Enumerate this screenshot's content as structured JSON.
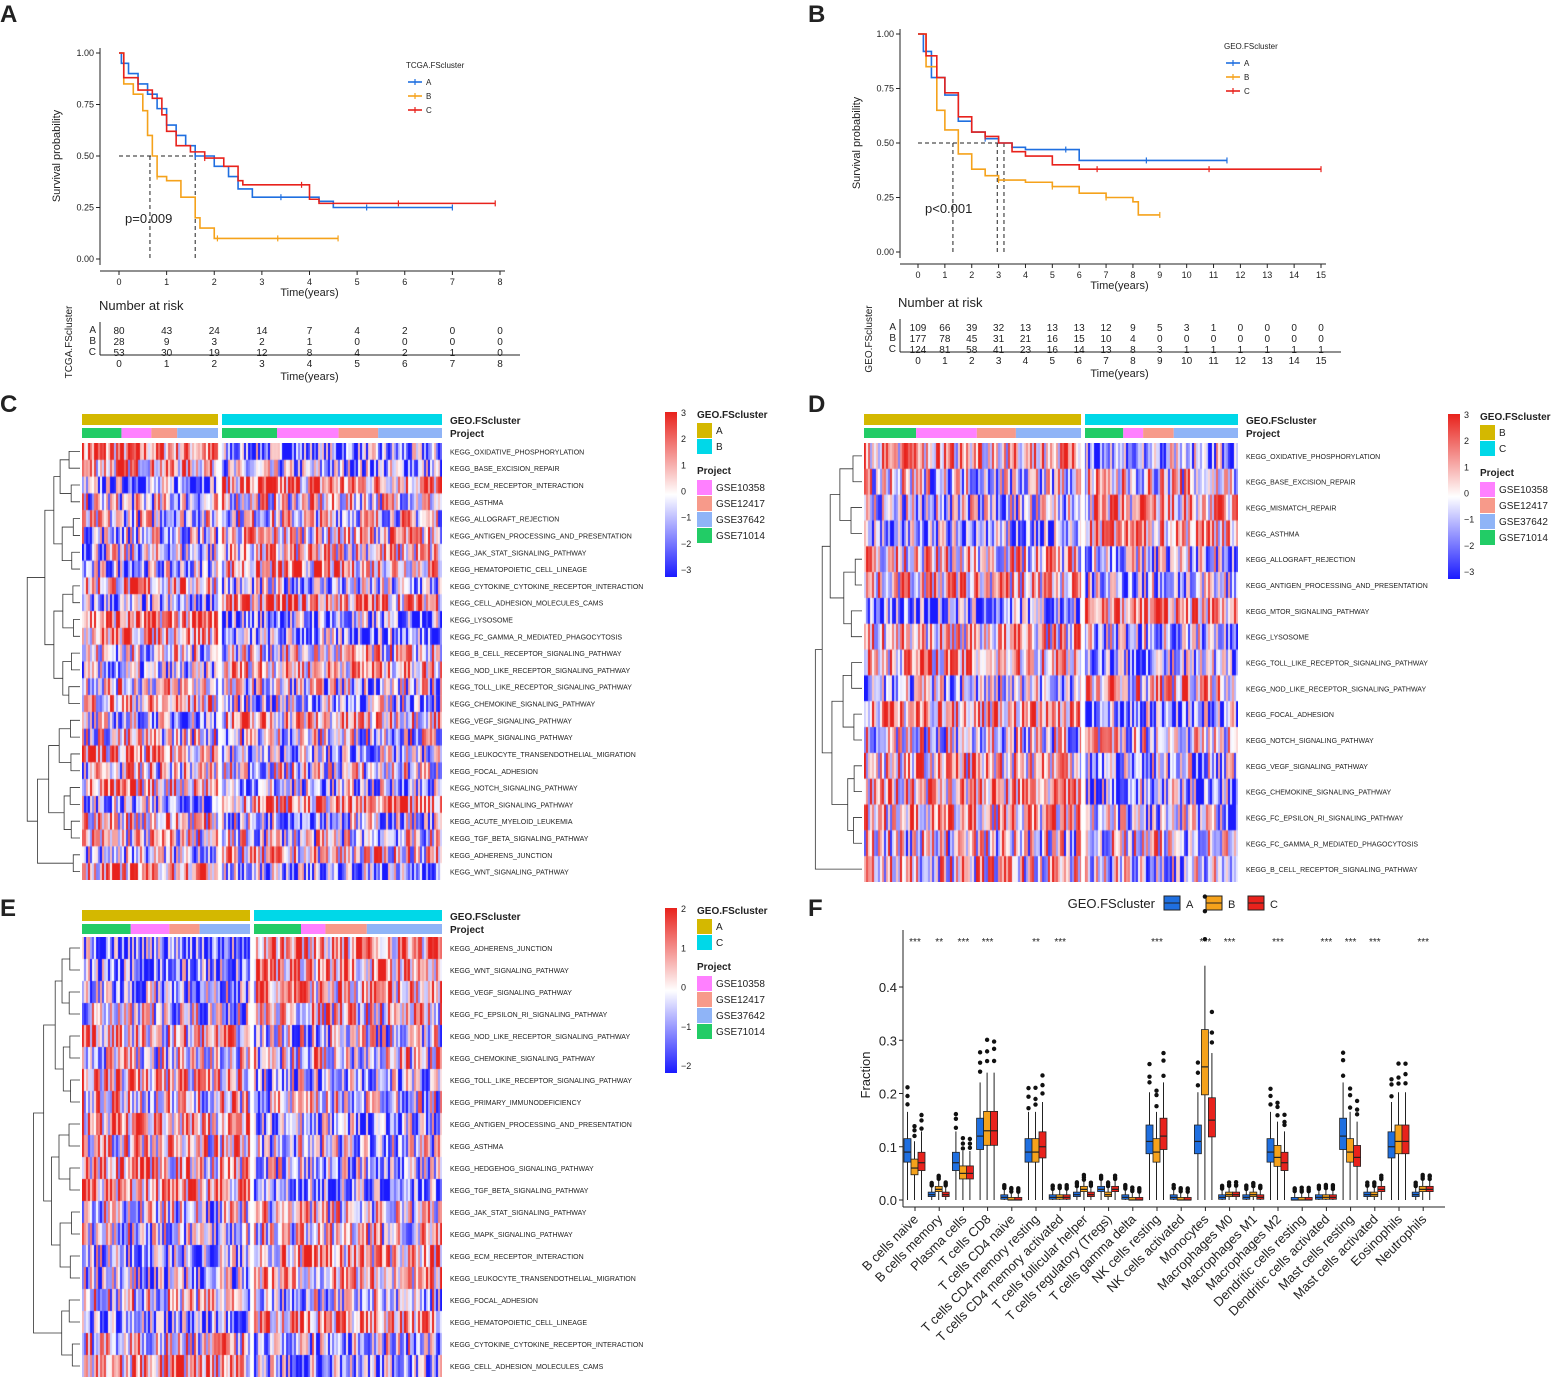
{
  "panels": {
    "a": "A",
    "b": "B",
    "c": "C",
    "d": "D",
    "e": "E",
    "f": "F"
  },
  "colors": {
    "A": "#1f6fe0",
    "B": "#f5a21b",
    "C": "#e8221c",
    "gold": "#d4b800",
    "cyan": "#00d8e8",
    "GSE10358": "#ff80ff",
    "GSE12417": "#f79a8a",
    "GSE37642": "#8fb4f7",
    "GSE71014": "#22cc66",
    "heat_high": "#e8221c",
    "heat_low": "#1a1aff"
  },
  "chart_data": [
    {
      "id": "A",
      "type": "line",
      "subtype": "kaplan-meier",
      "xlabel": "Time(years)",
      "ylabel": "Survival probability",
      "xlim": [
        0,
        8
      ],
      "ylim": [
        0,
        1
      ],
      "xticks": [
        "0",
        "1",
        "2",
        "3",
        "4",
        "5",
        "6",
        "7",
        "8"
      ],
      "yticks": [
        "0.00",
        "0.25",
        "0.50",
        "0.75",
        "1.00"
      ],
      "legend_title": "TCGA.FScluster",
      "legend_position": "top-right",
      "pvalue": "p=0.009",
      "medians": [
        0.65,
        1.6
      ],
      "series": [
        {
          "name": "A",
          "points": [
            [
              0,
              1
            ],
            [
              0.05,
              0.95
            ],
            [
              0.2,
              0.9
            ],
            [
              0.4,
              0.85
            ],
            [
              0.6,
              0.8
            ],
            [
              0.8,
              0.73
            ],
            [
              1,
              0.65
            ],
            [
              1.2,
              0.6
            ],
            [
              1.4,
              0.55
            ],
            [
              1.6,
              0.5
            ],
            [
              2,
              0.45
            ],
            [
              2.3,
              0.4
            ],
            [
              2.5,
              0.34
            ],
            [
              2.8,
              0.3
            ],
            [
              3.5,
              0.3
            ],
            [
              4.2,
              0.28
            ],
            [
              4.5,
              0.25
            ],
            [
              7,
              0.25
            ]
          ]
        },
        {
          "name": "B",
          "points": [
            [
              0,
              1
            ],
            [
              0.1,
              0.85
            ],
            [
              0.3,
              0.8
            ],
            [
              0.5,
              0.72
            ],
            [
              0.6,
              0.6
            ],
            [
              0.7,
              0.5
            ],
            [
              0.8,
              0.4
            ],
            [
              1,
              0.38
            ],
            [
              1.3,
              0.3
            ],
            [
              1.6,
              0.2
            ],
            [
              1.7,
              0.15
            ],
            [
              2,
              0.1
            ],
            [
              4.6,
              0.1
            ]
          ]
        },
        {
          "name": "C",
          "points": [
            [
              0,
              1
            ],
            [
              0.1,
              0.88
            ],
            [
              0.4,
              0.82
            ],
            [
              0.7,
              0.78
            ],
            [
              0.9,
              0.7
            ],
            [
              1,
              0.62
            ],
            [
              1.2,
              0.55
            ],
            [
              1.5,
              0.52
            ],
            [
              1.8,
              0.49
            ],
            [
              2.2,
              0.45
            ],
            [
              2.5,
              0.38
            ],
            [
              2.6,
              0.36
            ],
            [
              4,
              0.36
            ],
            [
              4,
              0.29
            ],
            [
              4.2,
              0.27
            ],
            [
              7.9,
              0.27
            ]
          ]
        }
      ],
      "risk_table": {
        "title": "Number at risk",
        "ylabel": "TCGA.FScluster",
        "xlabel": "Time(years)",
        "times": [
          "0",
          "1",
          "2",
          "3",
          "4",
          "5",
          "6",
          "7",
          "8"
        ],
        "rows": [
          {
            "name": "A",
            "values": [
              "80",
              "43",
              "24",
              "14",
              "7",
              "4",
              "2",
              "0",
              "0"
            ]
          },
          {
            "name": "B",
            "values": [
              "28",
              "9",
              "3",
              "2",
              "1",
              "0",
              "0",
              "0",
              "0"
            ]
          },
          {
            "name": "C",
            "values": [
              "53",
              "30",
              "19",
              "12",
              "8",
              "4",
              "2",
              "1",
              "0"
            ]
          }
        ]
      }
    },
    {
      "id": "B",
      "type": "line",
      "subtype": "kaplan-meier",
      "xlabel": "Time(years)",
      "ylabel": "Survival probability",
      "xlim": [
        0,
        15
      ],
      "ylim": [
        0,
        1
      ],
      "xticks": [
        "0",
        "1",
        "2",
        "3",
        "4",
        "5",
        "6",
        "7",
        "8",
        "9",
        "10",
        "11",
        "12",
        "13",
        "14",
        "15"
      ],
      "yticks": [
        "0.00",
        "0.25",
        "0.50",
        "0.75",
        "1.00"
      ],
      "legend_title": "GEO.FScluster",
      "legend_position": "top-right",
      "pvalue": "p<0.001",
      "medians": [
        1.3,
        2.95,
        3.2
      ],
      "series": [
        {
          "name": "A",
          "points": [
            [
              0,
              1
            ],
            [
              0.2,
              0.92
            ],
            [
              0.5,
              0.8
            ],
            [
              1,
              0.72
            ],
            [
              1.5,
              0.6
            ],
            [
              2,
              0.55
            ],
            [
              2.5,
              0.52
            ],
            [
              3,
              0.5
            ],
            [
              3.5,
              0.48
            ],
            [
              4,
              0.47
            ],
            [
              6,
              0.47
            ],
            [
              6,
              0.42
            ],
            [
              11.5,
              0.42
            ]
          ]
        },
        {
          "name": "B",
          "points": [
            [
              0,
              1
            ],
            [
              0.3,
              0.85
            ],
            [
              0.7,
              0.65
            ],
            [
              1,
              0.56
            ],
            [
              1.5,
              0.45
            ],
            [
              2,
              0.38
            ],
            [
              2.5,
              0.35
            ],
            [
              3,
              0.33
            ],
            [
              4,
              0.32
            ],
            [
              5,
              0.3
            ],
            [
              6,
              0.27
            ],
            [
              7,
              0.25
            ],
            [
              8,
              0.23
            ],
            [
              8.2,
              0.17
            ],
            [
              9,
              0.17
            ]
          ]
        },
        {
          "name": "C",
          "points": [
            [
              0,
              1
            ],
            [
              0.3,
              0.9
            ],
            [
              0.7,
              0.8
            ],
            [
              1,
              0.73
            ],
            [
              1.5,
              0.62
            ],
            [
              2,
              0.55
            ],
            [
              2.5,
              0.53
            ],
            [
              3,
              0.5
            ],
            [
              3.5,
              0.46
            ],
            [
              4,
              0.44
            ],
            [
              5,
              0.4
            ],
            [
              6,
              0.38
            ],
            [
              15,
              0.38
            ]
          ]
        }
      ],
      "risk_table": {
        "title": "Number at risk",
        "ylabel": "GEO.FScluster",
        "xlabel": "Time(years)",
        "times": [
          "0",
          "1",
          "2",
          "3",
          "4",
          "5",
          "6",
          "7",
          "8",
          "9",
          "10",
          "11",
          "12",
          "13",
          "14",
          "15"
        ],
        "rows": [
          {
            "name": "A",
            "values": [
              "109",
              "66",
              "39",
              "32",
              "13",
              "13",
              "13",
              "12",
              "9",
              "5",
              "3",
              "1",
              "0",
              "0",
              "0",
              "0"
            ]
          },
          {
            "name": "B",
            "values": [
              "177",
              "78",
              "45",
              "31",
              "21",
              "16",
              "15",
              "10",
              "4",
              "0",
              "0",
              "0",
              "0",
              "0",
              "0",
              "0"
            ]
          },
          {
            "name": "C",
            "values": [
              "124",
              "81",
              "58",
              "41",
              "23",
              "16",
              "14",
              "13",
              "8",
              "3",
              "1",
              "1",
              "1",
              "1",
              "1",
              "1"
            ]
          }
        ]
      }
    },
    {
      "id": "C",
      "type": "heatmap",
      "annotation_labels": [
        "GEO.FScluster",
        "Project"
      ],
      "legend_cluster_title": "GEO.FScluster",
      "clusters": [
        "A",
        "B"
      ],
      "legend_project_title": "Project",
      "projects": [
        "GSE10358",
        "GSE12417",
        "GSE37642",
        "GSE71014"
      ],
      "scale": [
        "3",
        "2",
        "1",
        "0",
        "−1",
        "−2",
        "−3"
      ],
      "rows": [
        "KEGG_OXIDATIVE_PHOSPHORYLATION",
        "KEGG_BASE_EXCISION_REPAIR",
        "KEGG_ECM_RECEPTOR_INTERACTION",
        "KEGG_ASTHMA",
        "KEGG_ALLOGRAFT_REJECTION",
        "KEGG_ANTIGEN_PROCESSING_AND_PRESENTATION",
        "KEGG_JAK_STAT_SIGNALING_PATHWAY",
        "KEGG_HEMATOPOIETIC_CELL_LINEAGE",
        "KEGG_CYTOKINE_CYTOKINE_RECEPTOR_INTERACTION",
        "KEGG_CELL_ADHESION_MOLECULES_CAMS",
        "KEGG_LYSOSOME",
        "KEGG_FC_GAMMA_R_MEDIATED_PHAGOCYTOSIS",
        "KEGG_B_CELL_RECEPTOR_SIGNALING_PATHWAY",
        "KEGG_NOD_LIKE_RECEPTOR_SIGNALING_PATHWAY",
        "KEGG_TOLL_LIKE_RECEPTOR_SIGNALING_PATHWAY",
        "KEGG_CHEMOKINE_SIGNALING_PATHWAY",
        "KEGG_VEGF_SIGNALING_PATHWAY",
        "KEGG_MAPK_SIGNALING_PATHWAY",
        "KEGG_LEUKOCYTE_TRANSENDOTHELIAL_MIGRATION",
        "KEGG_FOCAL_ADHESION",
        "KEGG_NOTCH_SIGNALING_PATHWAY",
        "KEGG_MTOR_SIGNALING_PATHWAY",
        "KEGG_ACUTE_MYELOID_LEUKEMIA",
        "KEGG_TGF_BETA_SIGNALING_PATHWAY",
        "KEGG_ADHERENS_JUNCTION",
        "KEGG_WNT_SIGNALING_PATHWAY"
      ]
    },
    {
      "id": "D",
      "type": "heatmap",
      "annotation_labels": [
        "GEO.FScluster",
        "Project"
      ],
      "legend_cluster_title": "GEO.FScluster",
      "clusters": [
        "B",
        "C"
      ],
      "legend_project_title": "Project",
      "projects": [
        "GSE10358",
        "GSE12417",
        "GSE37642",
        "GSE71014"
      ],
      "scale": [
        "3",
        "2",
        "1",
        "0",
        "−1",
        "−2",
        "−3"
      ],
      "rows": [
        "KEGG_OXIDATIVE_PHOSPHORYLATION",
        "KEGG_BASE_EXCISION_REPAIR",
        "KEGG_MISMATCH_REPAIR",
        "KEGG_ASTHMA",
        "KEGG_ALLOGRAFT_REJECTION",
        "KEGG_ANTIGEN_PROCESSING_AND_PRESENTATION",
        "KEGG_MTOR_SIGNALING_PATHWAY",
        "KEGG_LYSOSOME",
        "KEGG_TOLL_LIKE_RECEPTOR_SIGNALING_PATHWAY",
        "KEGG_NOD_LIKE_RECEPTOR_SIGNALING_PATHWAY",
        "KEGG_FOCAL_ADHESION",
        "KEGG_NOTCH_SIGNALING_PATHWAY",
        "KEGG_VEGF_SIGNALING_PATHWAY",
        "KEGG_CHEMOKINE_SIGNALING_PATHWAY",
        "KEGG_FC_EPSILON_RI_SIGNALING_PATHWAY",
        "KEGG_FC_GAMMA_R_MEDIATED_PHAGOCYTOSIS",
        "KEGG_B_CELL_RECEPTOR_SIGNALING_PATHWAY"
      ]
    },
    {
      "id": "E",
      "type": "heatmap",
      "annotation_labels": [
        "GEO.FScluster",
        "Project"
      ],
      "legend_cluster_title": "GEO.FScluster",
      "clusters": [
        "A",
        "C"
      ],
      "legend_project_title": "Project",
      "projects": [
        "GSE10358",
        "GSE12417",
        "GSE37642",
        "GSE71014"
      ],
      "scale": [
        "2",
        "1",
        "0",
        "−1",
        "−2"
      ],
      "rows": [
        "KEGG_ADHERENS_JUNCTION",
        "KEGG_WNT_SIGNALING_PATHWAY",
        "KEGG_VEGF_SIGNALING_PATHWAY",
        "KEGG_FC_EPSILON_RI_SIGNALING_PATHWAY",
        "KEGG_NOD_LIKE_RECEPTOR_SIGNALING_PATHWAY",
        "KEGG_CHEMOKINE_SIGNALING_PATHWAY",
        "KEGG_TOLL_LIKE_RECEPTOR_SIGNALING_PATHWAY",
        "KEGG_PRIMARY_IMMUNODEFICIENCY",
        "KEGG_ANTIGEN_PROCESSING_AND_PRESENTATION",
        "KEGG_ASTHMA",
        "KEGG_HEDGEHOG_SIGNALING_PATHWAY",
        "KEGG_TGF_BETA_SIGNALING_PATHWAY",
        "KEGG_JAK_STAT_SIGNALING_PATHWAY",
        "KEGG_MAPK_SIGNALING_PATHWAY",
        "KEGG_ECM_RECEPTOR_INTERACTION",
        "KEGG_LEUKOCYTE_TRANSENDOTHELIAL_MIGRATION",
        "KEGG_FOCAL_ADHESION",
        "KEGG_HEMATOPOIETIC_CELL_LINEAGE",
        "KEGG_CYTOKINE_CYTOKINE_RECEPTOR_INTERACTION",
        "KEGG_CELL_ADHESION_MOLECULES_CAMS"
      ]
    },
    {
      "id": "F",
      "type": "box",
      "legend_title": "GEO.FScluster",
      "legend_position": "top",
      "groups": [
        "A",
        "B",
        "C"
      ],
      "ylabel": "Fraction",
      "ylim": [
        0,
        0.45
      ],
      "yticks": [
        "0.0",
        "0.1",
        "0.2",
        "0.3",
        "0.4"
      ],
      "categories": [
        "B cells naive",
        "B cells memory",
        "Plasma cells",
        "T cells CD8",
        "T cells CD4 naive",
        "T cells CD4 memory resting",
        "T cells CD4 memory activated",
        "T cells follicular helper",
        "T cells regulatory (Tregs)",
        "T cells gamma delta",
        "NK cells resting",
        "NK cells activated",
        "Monocytes",
        "Macrophages M0",
        "Macrophages M1",
        "Macrophages M2",
        "Dendritic cells resting",
        "Dendritic cells activated",
        "Mast cells resting",
        "Mast cells activated",
        "Eosinophils",
        "Neutrophils"
      ],
      "significance": [
        "***",
        "**",
        "***",
        "***",
        "",
        "**",
        "***",
        "",
        "",
        "",
        "***",
        "",
        "***",
        "***",
        "",
        "***",
        "",
        "***",
        "***",
        "***",
        "",
        "***"
      ],
      "medians": [
        [
          0.09,
          0.06,
          0.07
        ],
        [
          0.01,
          0.02,
          0.01
        ],
        [
          0.07,
          0.05,
          0.05
        ],
        [
          0.12,
          0.13,
          0.13
        ],
        [
          0.005,
          0.0,
          0.0
        ],
        [
          0.09,
          0.09,
          0.1
        ],
        [
          0.005,
          0.005,
          0.005
        ],
        [
          0.01,
          0.02,
          0.01
        ],
        [
          0.02,
          0.01,
          0.02
        ],
        [
          0.005,
          0.0,
          0.0
        ],
        [
          0.11,
          0.09,
          0.12
        ],
        [
          0.005,
          0.0,
          0.0
        ],
        [
          0.11,
          0.25,
          0.15
        ],
        [
          0.005,
          0.01,
          0.01
        ],
        [
          0.005,
          0.01,
          0.005
        ],
        [
          0.09,
          0.08,
          0.07
        ],
        [
          0.0,
          0.0,
          0.0
        ],
        [
          0.005,
          0.005,
          0.005
        ],
        [
          0.12,
          0.09,
          0.08
        ],
        [
          0.01,
          0.01,
          0.02
        ],
        [
          0.1,
          0.11,
          0.11
        ],
        [
          0.01,
          0.02,
          0.02
        ]
      ]
    }
  ]
}
